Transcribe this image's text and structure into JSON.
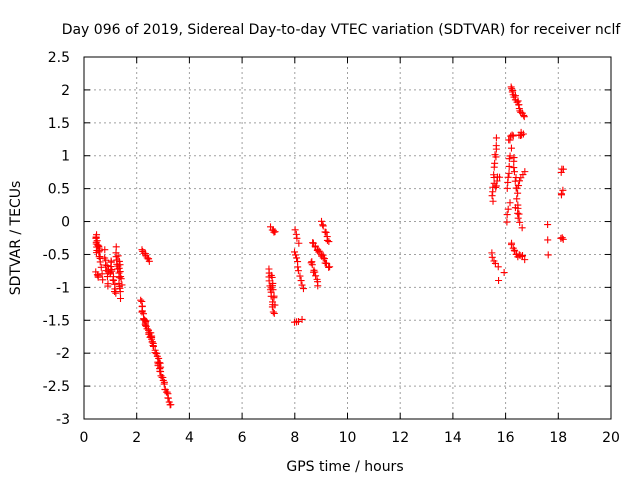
{
  "chart_data": {
    "type": "scatter",
    "title": "Day 096 of 2019, Sidereal Day-to-day VTEC variation (SDTVAR) for receiver nclf",
    "xlabel": "GPS time / hours",
    "ylabel": "SDTVAR / TECUs",
    "xlim": [
      0,
      20
    ],
    "ylim": [
      -3,
      2.5
    ],
    "xticks": [
      0,
      2,
      4,
      6,
      8,
      10,
      12,
      14,
      16,
      18,
      20
    ],
    "yticks": [
      -3,
      -2.5,
      -2,
      -1.5,
      -1,
      -0.5,
      0,
      0.5,
      1,
      1.5,
      2,
      2.5
    ],
    "ytick_labels": [
      "-3",
      "-2.5",
      "-2",
      "-1.5",
      "-1",
      "-0.5",
      "0",
      "0.5",
      "1",
      "1.5",
      "2",
      "2.5"
    ],
    "grid": true,
    "marker": "+",
    "color": "#ff0000",
    "segments": [
      {
        "x0": 0.45,
        "x1": 0.5,
        "y0": -0.2,
        "y1": -0.45,
        "n": 10
      },
      {
        "x0": 0.5,
        "x1": 0.6,
        "y0": -0.3,
        "y1": -0.55,
        "n": 8
      },
      {
        "x0": 0.45,
        "x1": 0.55,
        "y0": -0.75,
        "y1": -0.85,
        "n": 4
      },
      {
        "x0": 0.6,
        "x1": 0.7,
        "y0": -0.45,
        "y1": -0.9,
        "n": 6
      },
      {
        "x0": 0.8,
        "x1": 0.9,
        "y0": -0.45,
        "y1": -1.0,
        "n": 8
      },
      {
        "x0": 0.9,
        "x1": 1.0,
        "y0": -0.7,
        "y1": -0.8,
        "n": 5
      },
      {
        "x0": 1.0,
        "x1": 1.2,
        "y0": -0.6,
        "y1": -1.1,
        "n": 12
      },
      {
        "x0": 1.2,
        "x1": 1.4,
        "y0": -0.4,
        "y1": -1.15,
        "n": 14
      },
      {
        "x0": 1.3,
        "x1": 1.45,
        "y0": -0.55,
        "y1": -0.95,
        "n": 8
      },
      {
        "x0": 2.2,
        "x1": 2.5,
        "y0": -0.45,
        "y1": -0.6,
        "n": 9
      },
      {
        "x0": 2.15,
        "x1": 2.35,
        "y0": -1.2,
        "y1": -1.6,
        "n": 12
      },
      {
        "x0": 2.3,
        "x1": 2.6,
        "y0": -1.5,
        "y1": -1.8,
        "n": 12
      },
      {
        "x0": 2.5,
        "x1": 2.9,
        "y0": -1.7,
        "y1": -2.2,
        "n": 18
      },
      {
        "x0": 2.8,
        "x1": 3.3,
        "y0": -2.15,
        "y1": -2.8,
        "n": 22
      },
      {
        "x0": 7.1,
        "x1": 7.25,
        "y0": -0.1,
        "y1": -0.15,
        "n": 5
      },
      {
        "x0": 7.0,
        "x1": 7.2,
        "y0": -0.75,
        "y1": -1.4,
        "n": 14
      },
      {
        "x0": 7.1,
        "x1": 7.25,
        "y0": -0.8,
        "y1": -1.25,
        "n": 8
      },
      {
        "x0": 8.0,
        "x1": 8.15,
        "y0": -0.1,
        "y1": -0.3,
        "n": 4
      },
      {
        "x0": 8.0,
        "x1": 8.3,
        "y0": -0.45,
        "y1": -1.0,
        "n": 10
      },
      {
        "x0": 8.0,
        "x1": 8.25,
        "y0": -1.5,
        "y1": -1.5,
        "n": 4
      },
      {
        "x0": 8.6,
        "x1": 8.9,
        "y0": -0.6,
        "y1": -0.95,
        "n": 10
      },
      {
        "x0": 8.7,
        "x1": 9.3,
        "y0": -0.3,
        "y1": -0.7,
        "n": 18
      },
      {
        "x0": 9.0,
        "x1": 9.3,
        "y0": 0.0,
        "y1": -0.3,
        "n": 8
      },
      {
        "x0": 15.5,
        "x1": 15.65,
        "y0": 0.3,
        "y1": 1.25,
        "n": 14
      },
      {
        "x0": 15.6,
        "x1": 15.75,
        "y0": 0.5,
        "y1": 0.7,
        "n": 5
      },
      {
        "x0": 15.45,
        "x1": 15.7,
        "y0": -0.5,
        "y1": -0.7,
        "n": 5
      },
      {
        "x0": 15.75,
        "x1": 15.75,
        "y0": -0.9,
        "y1": -0.9,
        "n": 1
      },
      {
        "x0": 16.05,
        "x1": 16.2,
        "y0": 0.5,
        "y1": 1.1,
        "n": 8
      },
      {
        "x0": 16.05,
        "x1": 16.15,
        "y0": 0.0,
        "y1": 0.3,
        "n": 4
      },
      {
        "x0": 16.1,
        "x1": 16.3,
        "y0": 1.25,
        "y1": 1.3,
        "n": 5
      },
      {
        "x0": 16.2,
        "x1": 16.5,
        "y0": 2.05,
        "y1": 1.75,
        "n": 12
      },
      {
        "x0": 16.5,
        "x1": 16.7,
        "y0": 1.7,
        "y1": 1.6,
        "n": 6
      },
      {
        "x0": 16.3,
        "x1": 16.5,
        "y0": 1.0,
        "y1": 0.1,
        "n": 12
      },
      {
        "x0": 16.4,
        "x1": 16.7,
        "y0": 0.5,
        "y1": 0.75,
        "n": 6
      },
      {
        "x0": 16.5,
        "x1": 16.65,
        "y0": 1.3,
        "y1": 1.35,
        "n": 5
      },
      {
        "x0": 16.2,
        "x1": 16.4,
        "y0": -0.35,
        "y1": -0.5,
        "n": 6
      },
      {
        "x0": 16.4,
        "x1": 16.7,
        "y0": -0.5,
        "y1": -0.55,
        "n": 7
      },
      {
        "x0": 16.4,
        "x1": 16.6,
        "y0": 0.2,
        "y1": -0.1,
        "n": 5
      },
      {
        "x0": 15.95,
        "x1": 15.95,
        "y0": -0.8,
        "y1": -0.8,
        "n": 1
      },
      {
        "x0": 17.6,
        "x1": 17.6,
        "y0": -0.05,
        "y1": -0.5,
        "n": 3
      },
      {
        "x0": 18.1,
        "x1": 18.2,
        "y0": 0.75,
        "y1": 0.8,
        "n": 3
      },
      {
        "x0": 18.1,
        "x1": 18.2,
        "y0": 0.4,
        "y1": 0.45,
        "n": 3
      },
      {
        "x0": 18.1,
        "x1": 18.2,
        "y0": -0.25,
        "y1": -0.3,
        "n": 3
      }
    ]
  }
}
